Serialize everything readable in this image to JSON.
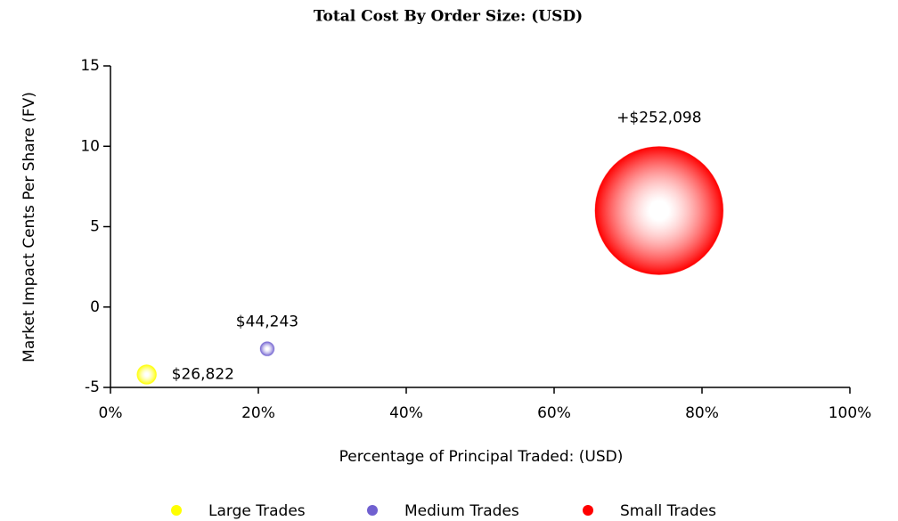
{
  "chart_data": {
    "type": "bubble",
    "title": "Total Cost By Order Size: (USD)",
    "xlabel": "Percentage of Principal Traded: (USD)",
    "ylabel": "Market Impact Cents Per Share (FV)",
    "xlim": [
      0,
      100
    ],
    "xticks": [
      {
        "value": 0,
        "label": "0%"
      },
      {
        "value": 20,
        "label": "20%"
      },
      {
        "value": 40,
        "label": "40%"
      },
      {
        "value": 60,
        "label": "60%"
      },
      {
        "value": 80,
        "label": "80%"
      },
      {
        "value": 100,
        "label": "100%"
      }
    ],
    "ylim": [
      -5,
      15
    ],
    "yticks": [
      -5,
      0,
      5,
      10,
      15
    ],
    "legend": "bottom",
    "series": [
      {
        "name": "Large Trades",
        "color": "#ffff00",
        "x": [
          4.9
        ],
        "values": [
          -4.2
        ],
        "sizes": [
          11
        ],
        "labels": [
          "$26,822"
        ]
      },
      {
        "name": "Medium Trades",
        "color": "#7060d0",
        "x": [
          21.2
        ],
        "values": [
          -2.6
        ],
        "sizes": [
          8
        ],
        "labels": [
          "$44,243"
        ]
      },
      {
        "name": "Small Trades",
        "color": "#ff0000",
        "x": [
          74.2
        ],
        "values": [
          6
        ],
        "sizes": [
          72
        ],
        "labels": [
          "+$252,098"
        ]
      }
    ]
  }
}
